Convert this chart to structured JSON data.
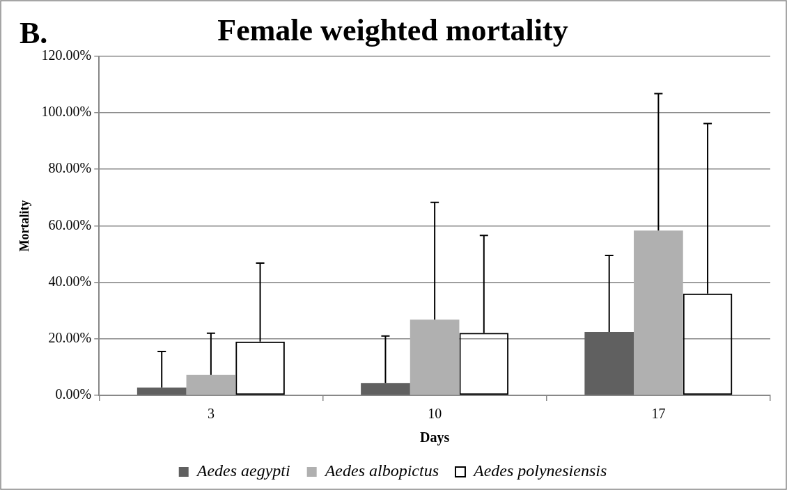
{
  "chart_data": {
    "type": "bar",
    "title": "Female weighted mortality",
    "annotations": [
      "B."
    ],
    "xlabel": "Days",
    "ylabel": "Mortality",
    "categories": [
      "3",
      "10",
      "17"
    ],
    "series": [
      {
        "name": "Aedes aegypti",
        "color": "#606060",
        "values": [
          2.8,
          4.4,
          22.4
        ],
        "errors": [
          [
            2.8,
            15.5
          ],
          [
            4.4,
            21.0
          ],
          [
            22.4,
            49.5
          ]
        ]
      },
      {
        "name": "Aedes albopictus",
        "color": "#b0b0b0",
        "values": [
          7.2,
          26.8,
          58.3
        ],
        "errors": [
          [
            7.2,
            22.0
          ],
          [
            26.8,
            68.3
          ],
          [
            58.3,
            106.8
          ]
        ]
      },
      {
        "name": "Aedes polynesiensis",
        "color": "#000000",
        "values": [
          19.0,
          22.1,
          36.0
        ],
        "errors": [
          [
            19.0,
            46.8
          ],
          [
            22.1,
            56.6
          ],
          [
            36.0,
            96.2
          ]
        ]
      }
    ],
    "ylim": [
      0,
      120
    ],
    "yticks": [
      {
        "value": 0,
        "label": "0.00%"
      },
      {
        "value": 20,
        "label": "20.00%"
      },
      {
        "value": 40,
        "label": "40.00%"
      },
      {
        "value": 60,
        "label": "60.00%"
      },
      {
        "value": 80,
        "label": "80.00%"
      },
      {
        "value": 100,
        "label": "100.00%"
      },
      {
        "value": 120,
        "label": "120.00%"
      }
    ],
    "grid": "y",
    "legend": "bottom"
  }
}
